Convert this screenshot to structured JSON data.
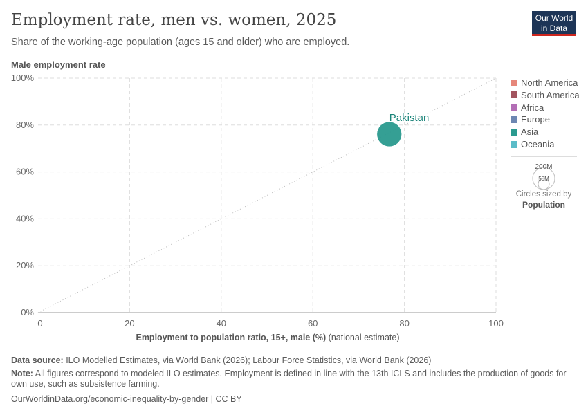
{
  "header": {
    "title": "Employment rate, men vs. women, 2025",
    "subtitle": "Share of the working-age population (ages 15 and older) who are employed.",
    "logo": "Our World in Data"
  },
  "chart_data": {
    "type": "scatter",
    "xlabel_bold": "Employment to population ratio, 15+, male (%)",
    "xlabel_rest": " (national estimate)",
    "ylabel": "Male employment rate",
    "xlim": [
      0,
      100
    ],
    "ylim": [
      0,
      100
    ],
    "xticks": [
      "0",
      "20",
      "40",
      "60",
      "80",
      "100"
    ],
    "yticks": [
      "0%",
      "20%",
      "40%",
      "60%",
      "80%",
      "100%"
    ],
    "grid": true,
    "diagonal_line": true,
    "points": [
      {
        "label": "Pakistan",
        "x": 76.7,
        "y": 76.1,
        "population_millions": 250,
        "region": "Asia"
      }
    ],
    "legend": [
      {
        "name": "North America",
        "color": "#e6877a"
      },
      {
        "name": "South America",
        "color": "#a2545f"
      },
      {
        "name": "Africa",
        "color": "#b36eb5"
      },
      {
        "name": "Europe",
        "color": "#6d87b2"
      },
      {
        "name": "Asia",
        "color": "#2b9a8f"
      },
      {
        "name": "Oceania",
        "color": "#5bbcc8"
      }
    ],
    "size_legend": {
      "large": "200M",
      "small": "50M",
      "caption": "Circles sized by",
      "variable": "Population"
    },
    "label_color": "#1a8479"
  },
  "footer": {
    "source_label": "Data source:",
    "source": " ILO Modelled Estimates, via World Bank (2026); Labour Force Statistics, via World Bank (2026)",
    "note_label": "Note:",
    "note": " All figures correspond to modeled ILO estimates. Employment is defined in line with the 13th ICLS and includes the production of goods for own use, such as subsistence farming.",
    "url": "OurWorldinData.org/economic-inequality-by-gender | CC BY"
  }
}
